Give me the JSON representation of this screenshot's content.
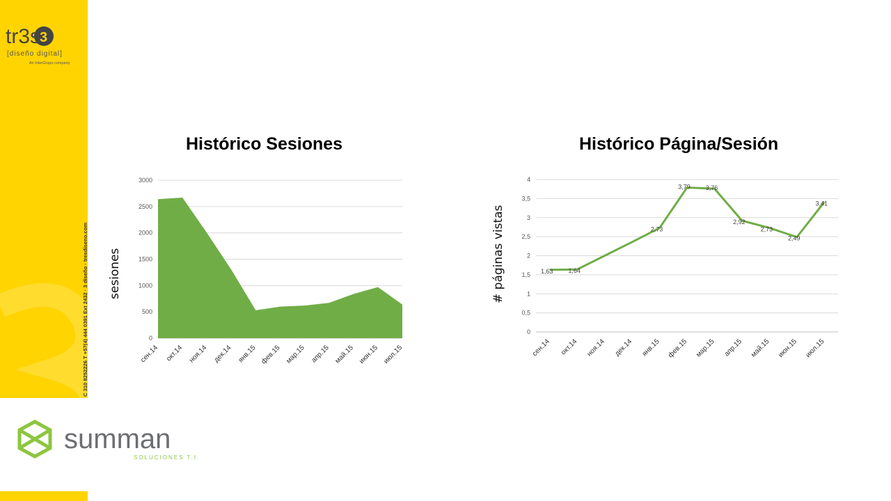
{
  "branding": {
    "tres_logo_text": "tr3s",
    "tres_subtitle": "[diseño digital]",
    "tres_tagline": "An InterGrupo company",
    "contact_line": "C 310 8252226  T +57(4) 444 0391  Ext 2432 · 3 diseño · tresdiseno.com",
    "summan_name": "summan",
    "summan_sub": "SOLUCIONES T.I",
    "accent_yellow": "#ffd400",
    "summan_green": "#8dc63f",
    "summan_gray": "#6d6e71"
  },
  "chart_data": [
    {
      "type": "area",
      "title": "Histórico Sesiones",
      "ylabel": "sesiones",
      "xlabel": "",
      "categories": [
        "сен.14",
        "окт.14",
        "ноя.14",
        "дек.14",
        "янв.15",
        "фев.15",
        "мар.15",
        "апр.15",
        "май.15",
        "июн.15",
        "июл.15"
      ],
      "series": [
        {
          "values": [
            2640,
            2670,
            2000,
            1300,
            530,
            600,
            620,
            670,
            840,
            970,
            640
          ]
        }
      ],
      "ylim": [
        0,
        3000
      ],
      "yticks": [
        "0",
        "500",
        "1000",
        "1500",
        "2000",
        "2500",
        "3000"
      ],
      "grid": true,
      "legend": "none",
      "color": "#70ad47"
    },
    {
      "type": "line",
      "title": "Histórico Página/Sesión",
      "ylabel": "# páginas vistas",
      "xlabel": "",
      "categories": [
        "сен.14",
        "окт.14",
        "ноя.14",
        "дек.14",
        "янв.15",
        "фев.15",
        "мар.15",
        "апр.15",
        "май.15",
        "июн.15",
        "июл.15"
      ],
      "series": [
        {
          "values": [
            1.63,
            1.64,
            null,
            null,
            2.73,
            3.79,
            3.76,
            2.92,
            2.73,
            2.49,
            3.41
          ],
          "interpolated": [
            1.63,
            1.64,
            2.0,
            2.36,
            2.73,
            3.79,
            3.76,
            2.92,
            2.73,
            2.49,
            3.41
          ],
          "labels": [
            "1,63",
            "1,64",
            "",
            "",
            "2,73",
            "3,79",
            "3,76",
            "2,92",
            "2,73",
            "2,49",
            "3,41"
          ]
        }
      ],
      "ylim": [
        0,
        4
      ],
      "yticks": [
        "0",
        "0,5",
        "1",
        "1,5",
        "2",
        "2,5",
        "3",
        "3,5",
        "4"
      ],
      "grid": true,
      "legend": "none",
      "color": "#70ad47"
    }
  ]
}
